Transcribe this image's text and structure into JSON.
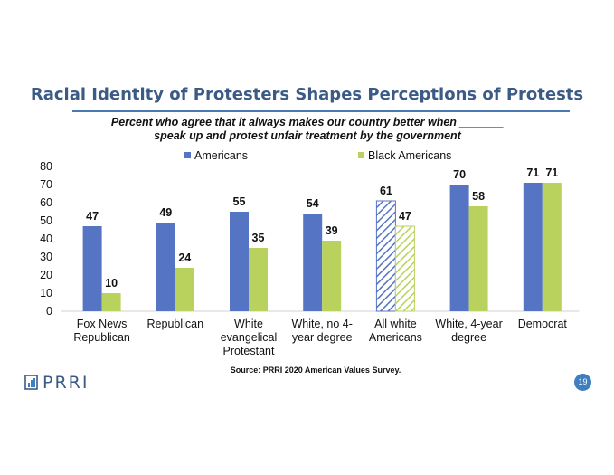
{
  "slide": {
    "title": "Racial Identity of Protesters Shapes Perceptions of Protests",
    "subtitle_line1": "Percent who agree that it always makes our country better when _______",
    "subtitle_line2": "speak up and protest unfair treatment by the government",
    "source": "Source: PRRI 2020 American Values Survey.",
    "logo_text": "PRRI",
    "page_number": "19"
  },
  "colors": {
    "americans": "#5574c4",
    "black_americans": "#b9d25e",
    "title": "#3b5a85",
    "accent": "#3f7fc0"
  },
  "chart_data": {
    "type": "bar",
    "categories": [
      [
        "Fox News",
        "Republican"
      ],
      [
        "Republican"
      ],
      [
        "White",
        "evangelical",
        "Protestant"
      ],
      [
        "White, no 4-",
        "year degree"
      ],
      [
        "All white",
        "Americans"
      ],
      [
        "White, 4-year",
        "degree"
      ],
      [
        "Democrat"
      ]
    ],
    "series": [
      {
        "name": "Americans",
        "values": [
          47,
          49,
          55,
          54,
          61,
          70,
          71
        ]
      },
      {
        "name": "Black Americans",
        "values": [
          10,
          24,
          35,
          39,
          47,
          58,
          71
        ]
      }
    ],
    "hatched_category_index": 4,
    "ylim": [
      0,
      80
    ],
    "yticks": [
      0,
      10,
      20,
      30,
      40,
      50,
      60,
      70,
      80
    ],
    "legend_position": "top-center",
    "grid": false
  }
}
